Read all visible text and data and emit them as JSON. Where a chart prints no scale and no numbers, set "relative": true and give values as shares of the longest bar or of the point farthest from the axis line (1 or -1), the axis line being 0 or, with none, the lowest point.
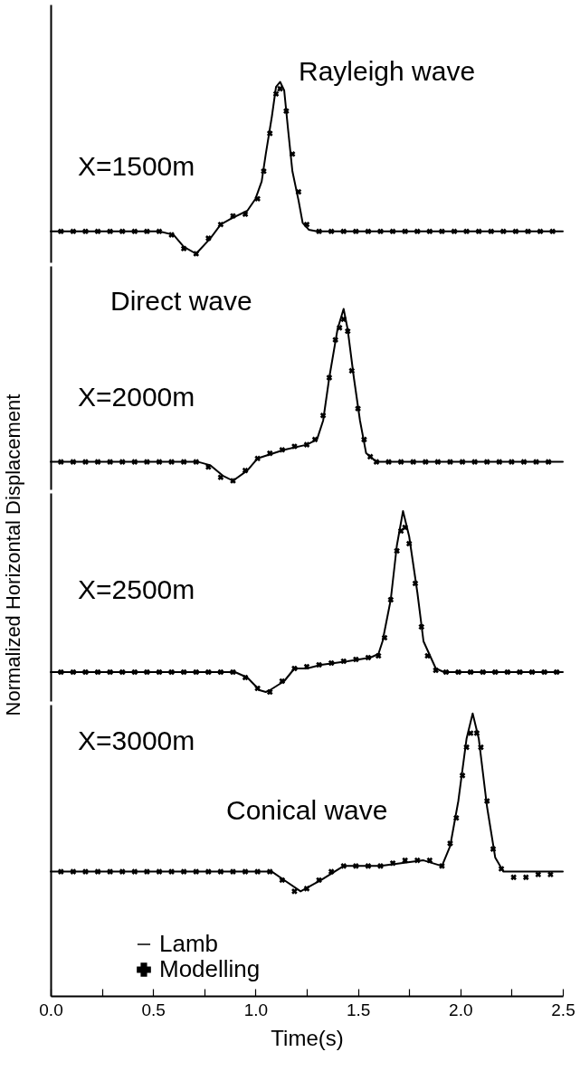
{
  "chart_data": [
    {
      "type": "line",
      "relative": true,
      "xlim": [
        0,
        2.5
      ],
      "tick_labels": false,
      "annotations": [
        "X=1500m",
        "Rayleigh wave"
      ],
      "series": [
        {
          "type": "line",
          "color": "#000000",
          "x": [
            0,
            0.53,
            0.6,
            0.65,
            0.71,
            0.78,
            0.83,
            0.89,
            0.96,
            1.0,
            1.03,
            1.05,
            1.08,
            1.1,
            1.12,
            1.14,
            1.16,
            1.18,
            1.21,
            1.23,
            1.26,
            1.3,
            2.5
          ],
          "values": [
            0.13,
            0.13,
            0.11,
            0.04,
            0,
            0.09,
            0.17,
            0.21,
            0.25,
            0.32,
            0.42,
            0.58,
            0.8,
            0.97,
            1,
            0.95,
            0.71,
            0.48,
            0.31,
            0.18,
            0.14,
            0.13,
            0.13
          ]
        },
        {
          "type": "scatter",
          "marker": "cross",
          "color": "#000000",
          "x": [
            0.05,
            0.11,
            0.17,
            0.23,
            0.29,
            0.35,
            0.41,
            0.47,
            0.53,
            0.59,
            0.65,
            0.71,
            0.77,
            0.83,
            0.89,
            0.95,
            1.01,
            1.04,
            1.07,
            1.1,
            1.12,
            1.15,
            1.18,
            1.21,
            1.25,
            1.31,
            1.37,
            1.43,
            1.49,
            1.55,
            1.61,
            1.67,
            1.73,
            1.79,
            1.85,
            1.91,
            1.97,
            2.03,
            2.09,
            2.15,
            2.21,
            2.27,
            2.33,
            2.39,
            2.45
          ],
          "values": [
            0.13,
            0.13,
            0.13,
            0.13,
            0.13,
            0.13,
            0.13,
            0.13,
            0.13,
            0.11,
            0.03,
            0,
            0.09,
            0.17,
            0.22,
            0.23,
            0.32,
            0.48,
            0.7,
            0.93,
            0.96,
            0.83,
            0.58,
            0.36,
            0.17,
            0.13,
            0.13,
            0.13,
            0.13,
            0.13,
            0.13,
            0.13,
            0.13,
            0.13,
            0.13,
            0.13,
            0.13,
            0.13,
            0.13,
            0.13,
            0.13,
            0.13,
            0.13,
            0.13,
            0.13
          ]
        }
      ]
    },
    {
      "type": "line",
      "relative": true,
      "xlim": [
        0,
        2.5
      ],
      "tick_labels": false,
      "annotations": [
        "Direct wave",
        "X=2000m"
      ],
      "series": [
        {
          "type": "line",
          "color": "#000000",
          "x": [
            0,
            0.72,
            0.78,
            0.84,
            0.89,
            0.96,
            1.01,
            1.14,
            1.25,
            1.3,
            1.33,
            1.36,
            1.4,
            1.43,
            1.45,
            1.48,
            1.51,
            1.54,
            1.59,
            2.5
          ],
          "values": [
            0.11,
            0.11,
            0.09,
            0.03,
            0,
            0.06,
            0.13,
            0.18,
            0.21,
            0.24,
            0.35,
            0.6,
            0.88,
            1,
            0.88,
            0.6,
            0.35,
            0.16,
            0.11,
            0.11
          ]
        },
        {
          "type": "scatter",
          "marker": "cross",
          "color": "#000000",
          "x": [
            0.05,
            0.11,
            0.17,
            0.23,
            0.29,
            0.35,
            0.41,
            0.47,
            0.53,
            0.59,
            0.65,
            0.71,
            0.77,
            0.83,
            0.89,
            0.95,
            1.01,
            1.07,
            1.13,
            1.19,
            1.25,
            1.29,
            1.33,
            1.36,
            1.39,
            1.41,
            1.43,
            1.45,
            1.47,
            1.5,
            1.53,
            1.56,
            1.59,
            1.65,
            1.71,
            1.77,
            1.83,
            1.89,
            1.95,
            2.01,
            2.07,
            2.13,
            2.19,
            2.25,
            2.31,
            2.37,
            2.43
          ],
          "values": [
            0.11,
            0.11,
            0.11,
            0.11,
            0.11,
            0.11,
            0.11,
            0.11,
            0.11,
            0.11,
            0.11,
            0.11,
            0.08,
            0.02,
            0,
            0.06,
            0.13,
            0.16,
            0.18,
            0.2,
            0.21,
            0.24,
            0.38,
            0.6,
            0.82,
            0.89,
            0.94,
            0.87,
            0.64,
            0.42,
            0.24,
            0.14,
            0.11,
            0.11,
            0.11,
            0.11,
            0.11,
            0.11,
            0.11,
            0.11,
            0.11,
            0.11,
            0.11,
            0.11,
            0.11,
            0.11,
            0.11
          ]
        }
      ]
    },
    {
      "type": "line",
      "relative": true,
      "ylabel": "Normalized Horizontal Displacement",
      "xlim": [
        0,
        2.5
      ],
      "tick_labels": false,
      "annotations": [
        "X=2500m"
      ],
      "series": [
        {
          "type": "line",
          "color": "#000000",
          "x": [
            0,
            0.9,
            0.96,
            1.02,
            1.05,
            1.07,
            1.14,
            1.19,
            1.25,
            1.32,
            1.45,
            1.56,
            1.6,
            1.62,
            1.66,
            1.69,
            1.72,
            1.75,
            1.79,
            1.82,
            1.88,
            1.92,
            2.5
          ],
          "values": [
            0.11,
            0.11,
            0.08,
            0.01,
            0,
            0.01,
            0.06,
            0.13,
            0.13,
            0.15,
            0.17,
            0.19,
            0.21,
            0.28,
            0.51,
            0.81,
            1,
            0.86,
            0.55,
            0.28,
            0.13,
            0.11,
            0.11
          ]
        },
        {
          "type": "scatter",
          "marker": "cross",
          "color": "#000000",
          "x": [
            0.05,
            0.11,
            0.17,
            0.23,
            0.29,
            0.35,
            0.41,
            0.47,
            0.53,
            0.59,
            0.65,
            0.71,
            0.77,
            0.83,
            0.89,
            0.95,
            1.01,
            1.07,
            1.13,
            1.19,
            1.25,
            1.31,
            1.37,
            1.43,
            1.49,
            1.55,
            1.6,
            1.63,
            1.66,
            1.69,
            1.71,
            1.73,
            1.75,
            1.78,
            1.81,
            1.84,
            1.88,
            1.93,
            1.99,
            2.05,
            2.11,
            2.17,
            2.23,
            2.29,
            2.35,
            2.41,
            2.47
          ],
          "values": [
            0.11,
            0.11,
            0.11,
            0.11,
            0.11,
            0.11,
            0.11,
            0.11,
            0.11,
            0.11,
            0.11,
            0.11,
            0.11,
            0.11,
            0.11,
            0.08,
            0.02,
            0,
            0.06,
            0.13,
            0.14,
            0.15,
            0.16,
            0.17,
            0.18,
            0.19,
            0.2,
            0.3,
            0.51,
            0.78,
            0.89,
            0.91,
            0.82,
            0.6,
            0.36,
            0.2,
            0.12,
            0.11,
            0.11,
            0.11,
            0.11,
            0.11,
            0.11,
            0.11,
            0.11,
            0.11,
            0.11
          ]
        }
      ]
    },
    {
      "type": "line",
      "relative": true,
      "xlabel": "Time(s)",
      "xlim": [
        0,
        2.5
      ],
      "tick_labels": "x",
      "legend": "bottom left",
      "annotations": [
        "X=3000m",
        "Conical wave"
      ],
      "xticks": [
        {
          "value": 0,
          "label": "0.0"
        },
        {
          "value": 0.25,
          "label": null
        },
        {
          "value": 0.5,
          "label": "0.5"
        },
        {
          "value": 0.75,
          "label": null
        },
        {
          "value": 1,
          "label": "1.0"
        },
        {
          "value": 1.25,
          "label": null
        },
        {
          "value": 1.5,
          "label": "1.5"
        },
        {
          "value": 1.75,
          "label": null
        },
        {
          "value": 2,
          "label": "2.0"
        },
        {
          "value": 2.25,
          "label": null
        },
        {
          "value": 2.5,
          "label": "2.5"
        }
      ],
      "series": [
        {
          "name": "Lamb",
          "type": "line",
          "color": "#000000",
          "x": [
            0,
            1.08,
            1.14,
            1.22,
            1.32,
            1.43,
            1.61,
            1.82,
            1.91,
            1.95,
            1.99,
            2.03,
            2.06,
            2.09,
            2.13,
            2.17,
            2.21,
            2.27,
            2.5
          ],
          "values": [
            0.44,
            0.44,
            0.41,
            0.37,
            0.41,
            0.46,
            0.46,
            0.48,
            0.46,
            0.53,
            0.69,
            0.91,
            1,
            0.91,
            0.67,
            0.49,
            0.44,
            0.44,
            0.44
          ]
        },
        {
          "name": "Modelling",
          "type": "scatter",
          "marker": "cross",
          "color": "#000000",
          "x": [
            0.05,
            0.11,
            0.17,
            0.23,
            0.29,
            0.35,
            0.41,
            0.47,
            0.53,
            0.59,
            0.65,
            0.71,
            0.77,
            0.83,
            0.89,
            0.95,
            1.01,
            1.07,
            1.13,
            1.19,
            1.25,
            1.31,
            1.37,
            1.43,
            1.49,
            1.55,
            1.61,
            1.67,
            1.73,
            1.79,
            1.85,
            1.91,
            1.95,
            1.98,
            2.01,
            2.03,
            2.05,
            2.08,
            2.1,
            2.13,
            2.16,
            2.2,
            2.26,
            2.32,
            2.38,
            2.44
          ],
          "values": [
            0.44,
            0.44,
            0.44,
            0.44,
            0.44,
            0.44,
            0.44,
            0.44,
            0.44,
            0.44,
            0.44,
            0.44,
            0.44,
            0.44,
            0.44,
            0.44,
            0.44,
            0.44,
            0.41,
            0.37,
            0.38,
            0.41,
            0.44,
            0.46,
            0.46,
            0.46,
            0.46,
            0.47,
            0.48,
            0.48,
            0.48,
            0.46,
            0.54,
            0.63,
            0.78,
            0.88,
            0.93,
            0.93,
            0.88,
            0.69,
            0.52,
            0.45,
            0.42,
            0.42,
            0.43,
            0.43
          ]
        }
      ]
    }
  ]
}
